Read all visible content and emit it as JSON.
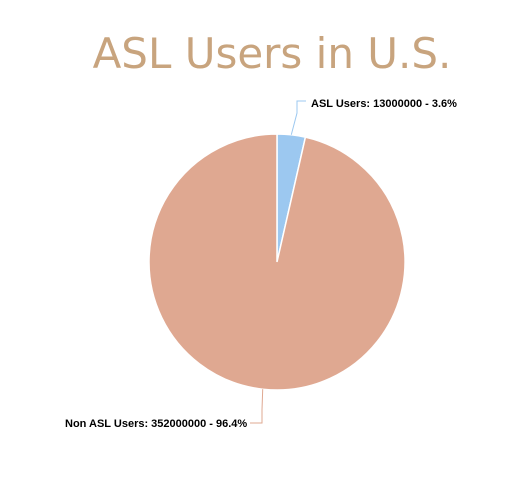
{
  "chart_data": {
    "type": "pie",
    "title": "ASL Users in U.S.",
    "title_color": "#c8a47e",
    "slices": [
      {
        "name": "ASL Users",
        "value": 13000000,
        "percent": "3.6%",
        "label": "ASL Users: 13000000 - 3.6%",
        "color": "#9cc8f0",
        "leader_color": "#9cc8f0"
      },
      {
        "name": "Non ASL Users",
        "value": 352000000,
        "percent": "96.4%",
        "label": "Non ASL Users: 352000000 - 96.4%",
        "color": "#dfa891",
        "leader_color": "#dfa891"
      }
    ],
    "legend": "none"
  }
}
